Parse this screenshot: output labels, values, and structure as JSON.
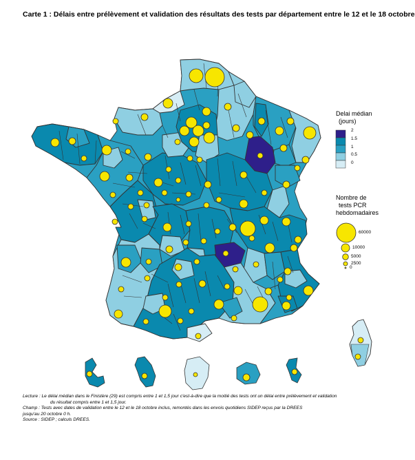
{
  "title": "Carte 1 : Délais entre prélèvement et validation des résultats des tests par département entre le 12 et le 18 octobre",
  "colors": {
    "class_0": "#d6edf5",
    "class_0_5": "#8fcfe2",
    "class_1": "#2aa0c2",
    "class_1_5": "#0a89ae",
    "class_2": "#2e1f8a",
    "bubble": "#f7e600",
    "border": "#333333"
  },
  "legend_delay": {
    "title_line1": "Delai médian",
    "title_line2": "(jours)",
    "items": [
      {
        "label": "2",
        "color": "#2e1f8a"
      },
      {
        "label": "1.5",
        "color": "#0a89ae"
      },
      {
        "label": "1",
        "color": "#2aa0c2"
      },
      {
        "label": "0.5",
        "color": "#8fcfe2"
      },
      {
        "label": "0",
        "color": "#d6edf5"
      }
    ]
  },
  "legend_size": {
    "title_line1": "Nombre de",
    "title_line2": "tests PCR",
    "title_line3": "hebdomadaires",
    "items": [
      {
        "label": "60000",
        "value": 60000
      },
      {
        "label": "10000",
        "value": 10000
      },
      {
        "label": "5000",
        "value": 5000
      },
      {
        "label": "2500",
        "value": 2500
      },
      {
        "label": "0",
        "value": 0
      }
    ]
  },
  "notes": {
    "lecture1": "Lecture : Le délai médian dans le Finistère (29) est compris entre 1 et 1,5 jour c'est-à-dire que la moitié des tests ont un délai entre prélèvement et validation",
    "lecture2": "du résultat compris entre 1 et 1,5 jour.",
    "champ1": "Champ : Tests avec dates de validation entre le 12 et le 18 octobre inclus, remontés dans les envois quotidiens SIDEP reçus par la DREES",
    "champ2": "jusqu'au 20 octobre 0 h.",
    "source": "Source : SIDEP ; calculs DREES."
  }
}
